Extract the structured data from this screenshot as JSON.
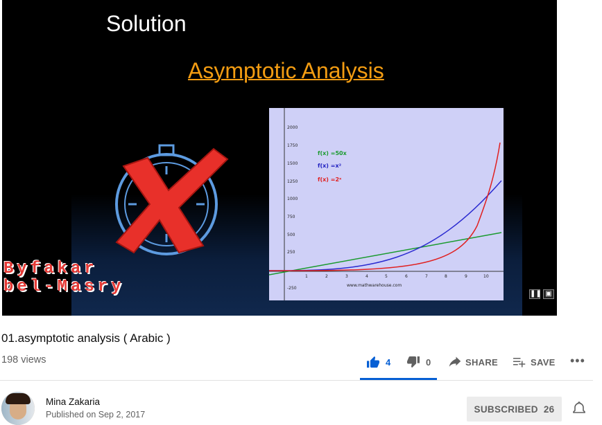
{
  "video": {
    "slide_heading": "Solution",
    "slide_title": "Asymptotic Analysis",
    "watermark_line1": "Byfakar",
    "watermark_line2": "bel-Masry",
    "graph": {
      "legend": [
        "f(x) =50x",
        "f(x) =x²",
        "f(x) =2ˣ"
      ],
      "legend_colors": [
        "#1a9a2e",
        "#2020c0",
        "#e02020"
      ],
      "y_ticks": [
        "2000",
        "1750",
        "1500",
        "1250",
        "1000",
        "750",
        "500",
        "250",
        "-250"
      ],
      "x_ticks": [
        "1",
        "2",
        "3",
        "4",
        "5",
        "6",
        "7",
        "8",
        "9",
        "10"
      ],
      "credit": "www.mathwarehouse.com"
    }
  },
  "title": "01.asymptotic analysis ( Arabic )",
  "views": "198 views",
  "actions": {
    "like_count": "4",
    "dislike_count": "0",
    "share_label": "SHARE",
    "save_label": "SAVE",
    "more_label": "•••"
  },
  "channel": {
    "name": "Mina Zakaria",
    "published": "Published on Sep 2, 2017",
    "subscribe_label": "SUBSCRIBED",
    "subscriber_count": "26"
  },
  "colors": {
    "accent": "#065fd4",
    "slide_title": "#f39c12",
    "watermark": "#e53935"
  }
}
